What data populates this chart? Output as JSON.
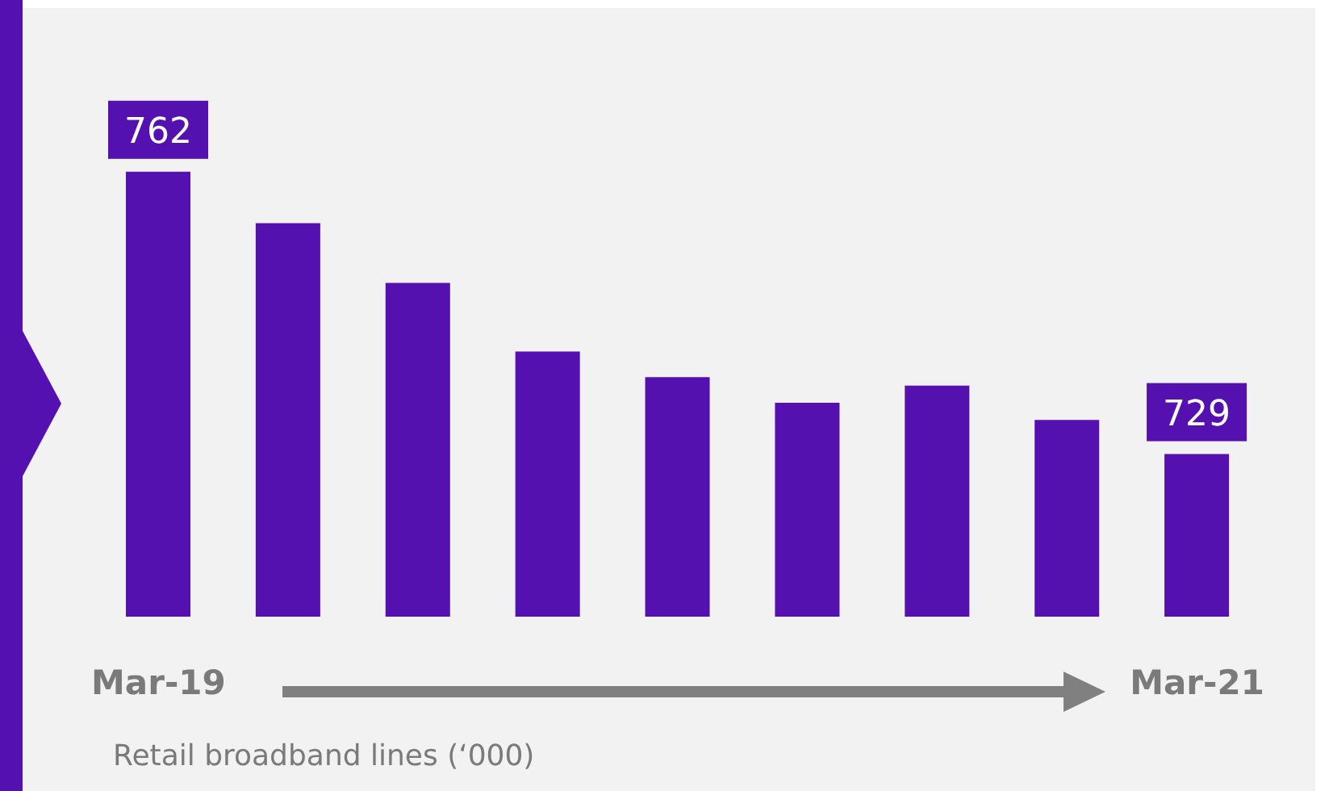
{
  "chart_data": {
    "type": "bar",
    "categories": [
      "Mar-19",
      null,
      null,
      null,
      null,
      null,
      null,
      null,
      "Mar-21"
    ],
    "values": [
      762,
      756,
      749,
      741,
      738,
      735,
      737,
      733,
      729
    ],
    "value_labels": [
      "762",
      null,
      null,
      null,
      null,
      null,
      null,
      null,
      "729"
    ],
    "color": "#5411b0",
    "ylim": [
      710,
      770
    ],
    "annotations": [
      "Retail broadband lines (‘000)"
    ]
  }
}
